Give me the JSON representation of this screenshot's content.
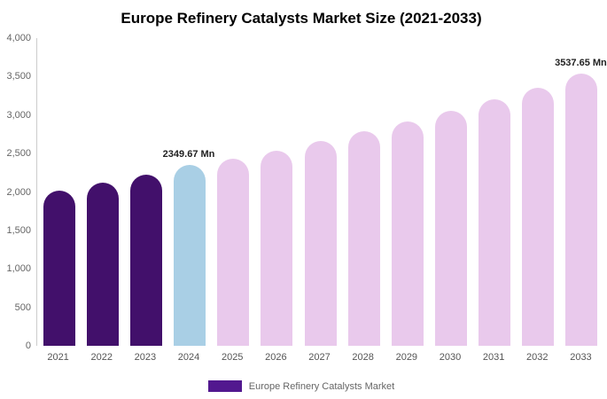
{
  "chart_data": {
    "type": "bar",
    "title": "Europe Refinery Catalysts Market Size (2021-2033)",
    "xlabel": "",
    "ylabel": "",
    "unit": "Mn",
    "categories": [
      "2021",
      "2022",
      "2023",
      "2024",
      "2025",
      "2026",
      "2027",
      "2028",
      "2029",
      "2030",
      "2031",
      "2032",
      "2033"
    ],
    "values": [
      2020,
      2120,
      2220,
      2349.67,
      2430,
      2540,
      2660,
      2790,
      2920,
      3060,
      3200,
      3360,
      3537.65
    ],
    "ylim": [
      0,
      4000
    ],
    "yticks": [
      0,
      500,
      1000,
      1500,
      2000,
      2500,
      3000,
      3500,
      4000
    ],
    "ytick_labels": [
      "0",
      "500",
      "1,000",
      "1,500",
      "2,000",
      "2,500",
      "3,000",
      "3,500",
      "4,000"
    ],
    "grid": false,
    "legend": {
      "label": "Europe Refinery Catalysts Market",
      "position": "bottom"
    },
    "annotations": [
      {
        "category": "2024",
        "text": "2349.67 Mn"
      },
      {
        "category": "2033",
        "text": "3537.65 Mn"
      }
    ],
    "colors": {
      "historical": "#42106b",
      "current": "#a9cfe5",
      "forecast": "#e9c9ec",
      "legend_swatch": "#52188f"
    },
    "bar_colors": [
      "#42106b",
      "#42106b",
      "#42106b",
      "#a9cfe5",
      "#e9c9ec",
      "#e9c9ec",
      "#e9c9ec",
      "#e9c9ec",
      "#e9c9ec",
      "#e9c9ec",
      "#e9c9ec",
      "#e9c9ec",
      "#e9c9ec"
    ]
  }
}
